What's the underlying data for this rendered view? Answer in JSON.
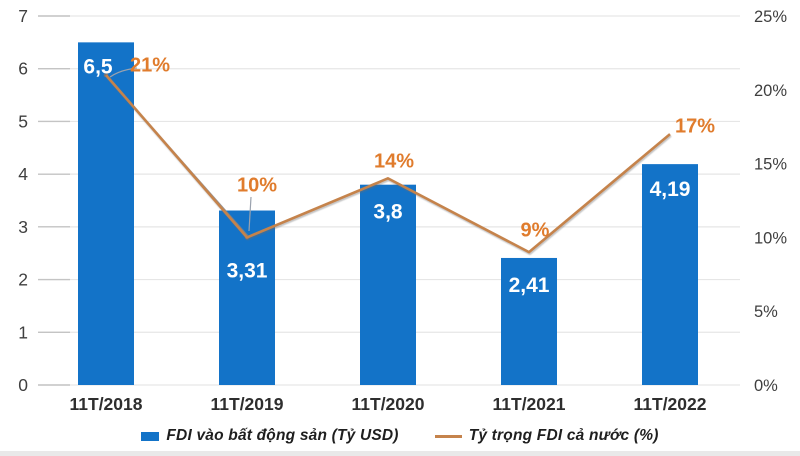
{
  "chart_data": {
    "type": "combo",
    "title": "",
    "categories": [
      "11T/2018",
      "11T/2019",
      "11T/2020",
      "11T/2021",
      "11T/2022"
    ],
    "series": [
      {
        "name": "FDI vào bất động sản (Tỷ USD)",
        "type": "bar",
        "axis": "left",
        "values": [
          6.5,
          3.31,
          3.8,
          2.41,
          4.19
        ],
        "value_labels": [
          "6,5",
          "3,31",
          "3,8",
          "2,41",
          "4,19"
        ],
        "color": "#1373C8",
        "label_color": "#FFFFFF"
      },
      {
        "name": "Tỷ trọng FDI cả nước (%)",
        "type": "line",
        "axis": "right",
        "values": [
          21,
          10,
          14,
          9,
          17
        ],
        "value_labels": [
          "21%",
          "10%",
          "14%",
          "9%",
          "17%"
        ],
        "color": "#C5834C",
        "label_color": "#E07C2D"
      }
    ],
    "left_axis": {
      "min": 0,
      "max": 7,
      "step": 1,
      "tick_labels": [
        "0",
        "1",
        "2",
        "3",
        "4",
        "5",
        "6",
        "7"
      ]
    },
    "right_axis": {
      "min": 0,
      "max": 25,
      "step": 5,
      "tick_labels": [
        "0%",
        "5%",
        "10%",
        "15%",
        "20%",
        "25%"
      ]
    },
    "grid": true,
    "legend_position": "bottom"
  },
  "colors": {
    "bar": "#1373C8",
    "line": "#C5834C",
    "line_shadow": "#7E838C",
    "pct_label": "#E07C2D",
    "axis_text": "#3F3F3F",
    "x_label_text": "#2E2E2E",
    "grid": "#E6E6E6",
    "tick": "#C4C4C4",
    "leader": "#9AA2AE"
  }
}
